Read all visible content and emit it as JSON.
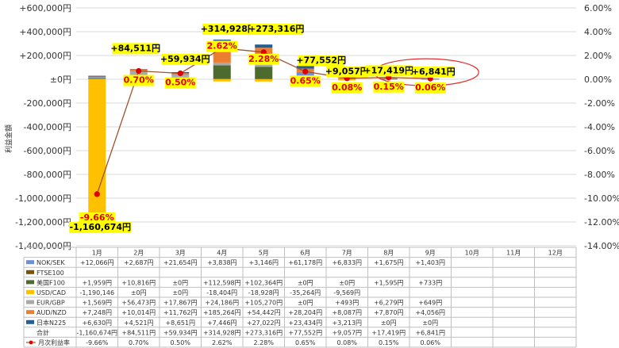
{
  "chart_data": {
    "type": "bar",
    "stacked": true,
    "ylabel": "利益金額",
    "ylim": [
      -1400000,
      600000
    ],
    "y2lim": [
      -14,
      6
    ],
    "y_ticks": [
      "+600,000円",
      "+400,000円",
      "+200,000円",
      "±0円",
      "-200,000円",
      "-400,000円",
      "-600,000円",
      "-800,000円",
      "-1,000,000円",
      "-1,200,000円",
      "-1,400,000円"
    ],
    "y2_ticks": [
      "6.00%",
      "4.00%",
      "2.00%",
      "0.00%",
      "-2.00%",
      "-4.00%",
      "-6.00%",
      "-8.00%",
      "-10.00%",
      "-12.00%",
      "-14.00%"
    ],
    "categories": [
      "1月",
      "2月",
      "3月",
      "4月",
      "5月",
      "6月",
      "7月",
      "8月",
      "9月",
      "10月",
      "11月",
      "12月"
    ],
    "grid": true,
    "legend_placement": "data-table-left",
    "series": [
      {
        "name": "NOK/SEK",
        "color": "#6f8fd0",
        "values": [
          12066,
          2687,
          21654,
          3838,
          3146,
          61178,
          6833,
          1675,
          1403,
          null,
          null,
          null
        ],
        "labels": [
          "+12,066円",
          "+2,687円",
          "+21,654円",
          "+3,838円",
          "+3,146円",
          "+61,178円",
          "+6,833円",
          "+1,675円",
          "+1,403円",
          "",
          "",
          ""
        ]
      },
      {
        "name": "FTSE100",
        "color": "#7a5200",
        "values": [
          null,
          null,
          null,
          null,
          null,
          null,
          null,
          null,
          null,
          null,
          null,
          null
        ],
        "labels": [
          "",
          "",
          "",
          "",
          "",
          "",
          "",
          "",
          "",
          "",
          "",
          ""
        ]
      },
      {
        "name": "美国F100",
        "color": "#4d6b2e",
        "values": [
          1959,
          10816,
          0,
          112598,
          102364,
          0,
          0,
          1595,
          733,
          null,
          null,
          null
        ],
        "labels": [
          "+1,959円",
          "+10,816円",
          "±0円",
          "+112,598円",
          "+102,364円",
          "±0円",
          "±0円",
          "+1,595円",
          "+733円",
          "",
          "",
          ""
        ]
      },
      {
        "name": "USD/CAD",
        "color": "#ffc000",
        "values": [
          -1190146,
          0,
          0,
          -18404,
          -18928,
          -35264,
          -9569,
          null,
          null,
          null,
          null,
          null
        ],
        "labels": [
          "-1,190,146",
          "±0円",
          "±0円",
          "-18,404円",
          "-18,928円",
          "-35,264円",
          "-9,569円",
          "",
          "",
          "",
          "",
          ""
        ]
      },
      {
        "name": "EUR/GBP",
        "color": "#a9a9a9",
        "values": [
          1569,
          56473,
          17867,
          24186,
          105270,
          0,
          493,
          6279,
          649,
          null,
          null,
          null
        ],
        "labels": [
          "+1,569円",
          "+56,473円",
          "+17,867円",
          "+24,186円",
          "+105,270円",
          "±0円",
          "+493円",
          "+6,279円",
          "+649円",
          "",
          "",
          ""
        ]
      },
      {
        "name": "AUD/NZD",
        "color": "#ed7d31",
        "values": [
          7248,
          10014,
          11762,
          185264,
          54442,
          28204,
          8087,
          7870,
          4056,
          null,
          null,
          null
        ],
        "labels": [
          "+7,248円",
          "+10,014円",
          "+11,762円",
          "+185,264円",
          "+54,442円",
          "+28,204円",
          "+8,087円",
          "+7,870円",
          "+4,056円",
          "",
          "",
          ""
        ]
      },
      {
        "name": "日本N225",
        "color": "#255e91",
        "values": [
          6630,
          4521,
          8651,
          7446,
          27022,
          23434,
          3213,
          0,
          0,
          null,
          null,
          null
        ],
        "labels": [
          "+6,630円",
          "+4,521円",
          "+8,651円",
          "+7,446円",
          "+27,022円",
          "+23,434円",
          "+3,213円",
          "±0円",
          "±0円",
          "",
          "",
          ""
        ]
      }
    ],
    "totals": {
      "name": "合計",
      "values": [
        -1160674,
        84511,
        59934,
        314928,
        273316,
        77552,
        9057,
        17419,
        6841,
        null,
        null,
        null
      ],
      "labels": [
        "-1,160,674円",
        "+84,511円",
        "+59,934円",
        "+314,928円",
        "+273,316円",
        "+77,552円",
        "+9,057円",
        "+17,419円",
        "+6,841円",
        "",
        "",
        ""
      ]
    },
    "rate": {
      "name": "月次利益率",
      "color": "#c0504d",
      "axis": "right",
      "values": [
        -9.66,
        0.7,
        0.5,
        2.62,
        2.28,
        0.65,
        0.08,
        0.15,
        0.06,
        null,
        null,
        null
      ],
      "labels": [
        "-9.66%",
        "0.70%",
        "0.50%",
        "2.62%",
        "2.28%",
        "0.65%",
        "0.08%",
        "0.15%",
        "0.06%",
        "",
        "",
        ""
      ]
    },
    "annotations": {
      "total_labels": [
        "-1,160,674円",
        "+84,511円",
        "+59,934円",
        "+314,928円",
        "+273,316円",
        "+77,552円",
        "+9,057円",
        "+17,419円",
        "+6,841円"
      ],
      "rate_labels": [
        "-9.66%",
        "0.70%",
        "0.50%",
        "2.62%",
        "2.28%",
        "0.65%",
        "0.08%",
        "0.15%",
        "0.06%"
      ],
      "highlight_month": "9月"
    }
  }
}
